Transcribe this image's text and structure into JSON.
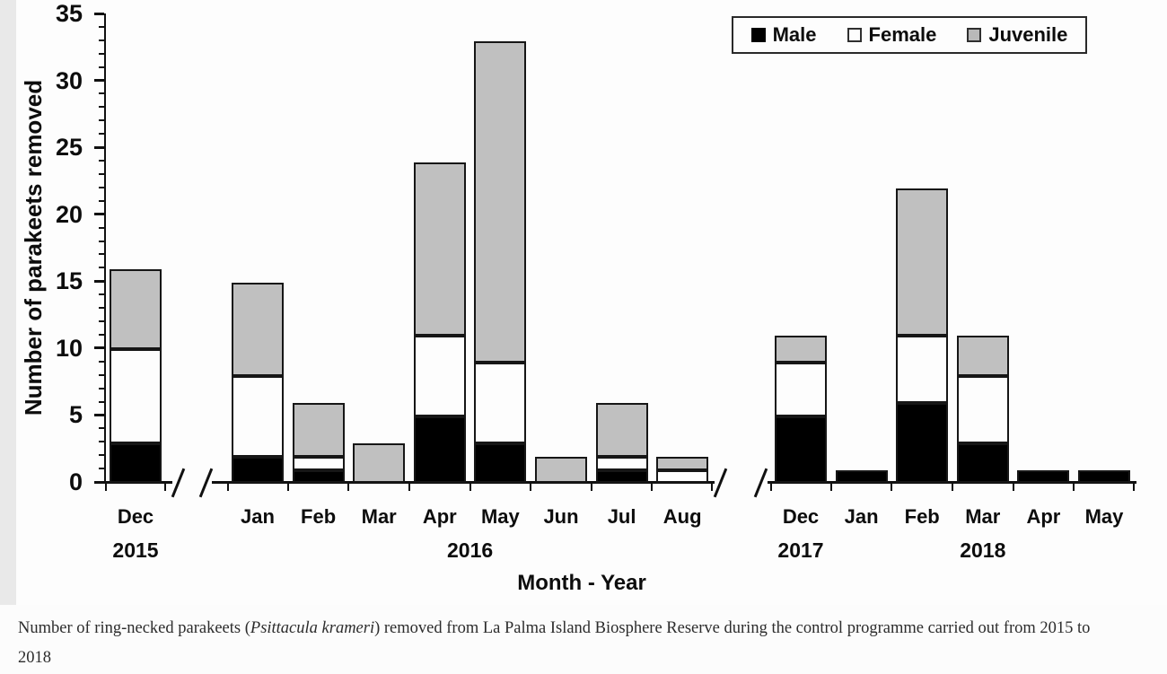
{
  "figure": {
    "page_background": "#e9e9e9",
    "figure_background": "#fdfdfd"
  },
  "chart_data": {
    "type": "bar",
    "stacked": true,
    "title": "",
    "xlabel": "Month - Year",
    "ylabel": "Number of parakeets removed",
    "ylim": [
      0,
      35
    ],
    "yticks": [
      0,
      5,
      10,
      15,
      20,
      25,
      30,
      35
    ],
    "minor_tick_step": 1,
    "grid": false,
    "categories": [
      "Dec 2015",
      "Jan 2016",
      "Feb 2016",
      "Mar 2016",
      "Apr 2016",
      "May 2016",
      "Jun 2016",
      "Jul 2016",
      "Aug 2016",
      "Dec 2017",
      "Jan 2018",
      "Feb 2018",
      "Mar 2018",
      "Apr 2018",
      "May 2018"
    ],
    "series": [
      {
        "name": "Male",
        "color": "#000000",
        "values": [
          3,
          2,
          1,
          0,
          5,
          3,
          0,
          1,
          0,
          5,
          1,
          6,
          3,
          1,
          1
        ]
      },
      {
        "name": "Female",
        "color": "#fdfdfd",
        "values": [
          7,
          6,
          1,
          0,
          6,
          6,
          0,
          1,
          1,
          4,
          0,
          5,
          5,
          0,
          0
        ]
      },
      {
        "name": "Juvenile",
        "color": "#c0c0c0",
        "values": [
          6,
          7,
          4,
          3,
          13,
          24,
          2,
          4,
          1,
          2,
          0,
          11,
          3,
          0,
          0
        ]
      }
    ],
    "legend": {
      "position": "top-right",
      "entries": [
        {
          "label": "Male",
          "color": "#000000"
        },
        {
          "label": "Female",
          "color": "#fdfdfd"
        },
        {
          "label": "Juvenile",
          "color": "#b9b9b9"
        }
      ]
    },
    "x_axis": {
      "segments": [
        {
          "category_indices": [
            0
          ],
          "year_labels": [
            {
              "text": "2015",
              "span": [
                0,
                0
              ]
            }
          ],
          "break_before": false,
          "break_after": true
        },
        {
          "category_indices": [
            1,
            2,
            3,
            4,
            5,
            6,
            7,
            8
          ],
          "year_labels": [
            {
              "text": "2016",
              "span": [
                1,
                8
              ]
            }
          ],
          "break_before": true,
          "break_after": true
        },
        {
          "category_indices": [
            9,
            10,
            11,
            12,
            13,
            14
          ],
          "year_labels": [
            {
              "text": "2017",
              "span": [
                9,
                9
              ]
            },
            {
              "text": "2018",
              "span": [
                10,
                14
              ]
            }
          ],
          "break_before": true,
          "break_after": false
        }
      ]
    }
  },
  "caption": {
    "parts": {
      "prefix": "Number of ring-necked parakeets (",
      "italic": "Psittacula krameri",
      "suffix": ") removed from La Palma Island Biosphere Reserve during the control programme carried out from 2015 to 2018"
    }
  }
}
